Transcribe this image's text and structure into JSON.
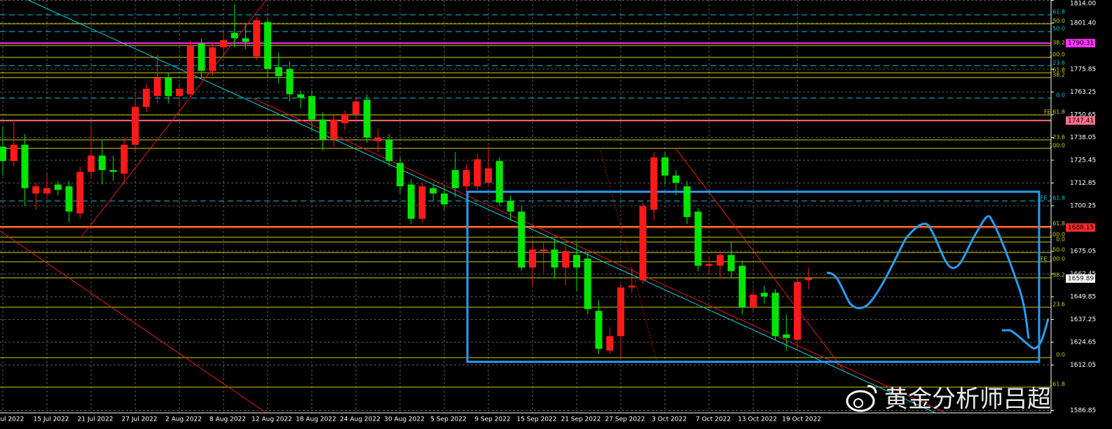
{
  "chart_data": {
    "type": "candlestick",
    "categories": [
      "Jul 2022",
      null,
      null,
      null,
      "15 Jul 2022",
      null,
      null,
      null,
      "21 Jul 2022",
      null,
      null,
      null,
      "27 Jul 2022",
      null,
      null,
      null,
      "2 Aug 2022",
      null,
      null,
      null,
      "8 Aug 2022",
      null,
      null,
      null,
      "12 Aug 2022",
      null,
      null,
      null,
      "18 Aug 2022",
      null,
      null,
      null,
      "24 Aug 2022",
      null,
      null,
      null,
      "30 Aug 2022",
      null,
      null,
      null,
      "5 Sep 2022",
      null,
      null,
      null,
      "9 Sep 2022",
      null,
      null,
      null,
      "15 Sep 2022",
      null,
      null,
      null,
      "21 Sep 2022",
      null,
      null,
      null,
      "27 Sep 2022",
      null,
      null,
      null,
      "3 Oct 2022",
      null,
      null,
      null,
      "7 Oct 2022",
      null,
      null,
      null,
      "13 Oct 2022",
      null,
      null,
      null,
      "19 Oct 2022",
      null
    ],
    "open": [
      1733,
      1725,
      1734,
      1707,
      1707,
      1712,
      1711,
      1696,
      1719,
      1728,
      1720,
      1718,
      1734,
      1755,
      1761,
      1771,
      1761,
      1762,
      1790,
      1775,
      1788,
      1796,
      1793,
      1783,
      1802,
      1777,
      1776,
      1762,
      1761,
      1748,
      1737,
      1746,
      1751,
      1759,
      1736,
      1737,
      1724,
      1712,
      1693,
      1710,
      1707,
      1720,
      1711,
      1711,
      1713,
      1725,
      1703,
      1697,
      1666,
      1675,
      1676,
      1666,
      1673,
      1671,
      1642,
      1620,
      1628,
      1655,
      1659,
      1698,
      1727,
      1717,
      1711,
      1697,
      1667,
      1667,
      1673,
      1667,
      1644,
      1652,
      1652,
      1629,
      1626,
      1659
    ],
    "close": [
      1725,
      1734,
      1710,
      1711,
      1710,
      1709,
      1697,
      1719,
      1728,
      1720,
      1719,
      1734,
      1755,
      1765,
      1771,
      1761,
      1765,
      1789,
      1775,
      1788,
      1792,
      1793,
      1791,
      1803,
      1776,
      1772,
      1762,
      1760,
      1748,
      1737,
      1748,
      1751,
      1758,
      1738,
      1738,
      1725,
      1711,
      1693,
      1711,
      1707,
      1701,
      1710,
      1720,
      1726,
      1721,
      1702,
      1697,
      1666,
      1676,
      1676,
      1666,
      1675,
      1666,
      1643,
      1621,
      1628,
      1655,
      1656,
      1700,
      1727,
      1717,
      1713,
      1694,
      1667,
      1668,
      1673,
      1664,
      1644,
      1651,
      1650,
      1628,
      1627,
      1658,
      1660
    ],
    "high": [
      1744,
      1748,
      1740,
      1713,
      1718,
      1714,
      1714,
      1722,
      1745,
      1737,
      1728,
      1738,
      1762,
      1768,
      1784,
      1774,
      1768,
      1792,
      1793,
      1791,
      1797,
      1812,
      1801,
      1805,
      1804,
      1785,
      1780,
      1764,
      1764,
      1752,
      1751,
      1753,
      1760,
      1762,
      1743,
      1740,
      1727,
      1715,
      1713,
      1712,
      1711,
      1730,
      1723,
      1729,
      1733,
      1727,
      1706,
      1700,
      1680,
      1680,
      1682,
      1678,
      1680,
      1674,
      1648,
      1633,
      1657,
      1666,
      1702,
      1730,
      1730,
      1720,
      1714,
      1699,
      1672,
      1675,
      1680,
      1670,
      1654,
      1656,
      1654,
      1640,
      1660,
      1666
    ],
    "low": [
      1717,
      1722,
      1700,
      1698,
      1705,
      1706,
      1691,
      1693,
      1715,
      1712,
      1714,
      1712,
      1730,
      1752,
      1757,
      1757,
      1755,
      1760,
      1771,
      1772,
      1784,
      1788,
      1787,
      1781,
      1771,
      1768,
      1758,
      1754,
      1742,
      1731,
      1733,
      1742,
      1746,
      1735,
      1730,
      1722,
      1707,
      1690,
      1691,
      1703,
      1698,
      1705,
      1708,
      1709,
      1711,
      1700,
      1692,
      1664,
      1656,
      1663,
      1660,
      1656,
      1653,
      1640,
      1618,
      1618,
      1615,
      1652,
      1657,
      1692,
      1712,
      1706,
      1690,
      1664,
      1662,
      1660,
      1660,
      1640,
      1642,
      1646,
      1626,
      1620,
      1620,
      1654
    ],
    "up_color": "#ff1a1a",
    "down_color": "#00e600",
    "ylim": [
      1585.1,
      1814.2
    ],
    "yticks": [
      {
        "value": 1814,
        "label": "1814.00"
      },
      {
        "value": 1801.4,
        "label": "1801.40"
      },
      1775.85,
      1763.25,
      1750.65,
      1738.05,
      1725.45,
      1712.85,
      1700.25,
      1675.05,
      1662.45,
      1649.85,
      1637.25,
      1624.65,
      1612.05,
      1586.85
    ],
    "grid": true,
    "levels": [
      {
        "label": "61.8",
        "value": 1806.0,
        "color": "#00c8d8"
      },
      {
        "label": "50.0",
        "value": 1801.0,
        "color": "#d0d000"
      },
      {
        "label": "50.0",
        "value": 1796.7,
        "color": "#00c8d8"
      },
      {
        "label": "38.2",
        "value": 1789.0,
        "color": "#d0d000"
      },
      {
        "label": "100.0",
        "value": 1782.4,
        "color": "#d0d000"
      },
      {
        "label": "23.6",
        "value": 1777.8,
        "color": "#00c8d8"
      },
      {
        "label": "61.8",
        "value": 1773.9,
        "color": "#d0d000"
      },
      {
        "label": "38.2",
        "value": 1771.2,
        "color": "#d0d000"
      },
      {
        "label": "0.0",
        "value": 1759.9,
        "color": "#00c8d8"
      },
      {
        "label": "FE 61.8",
        "value": 1750.6,
        "color": "#d0d000"
      },
      {
        "label": "23.6",
        "value": 1736.7,
        "color": "#d0d000"
      },
      {
        "label": "100.0",
        "value": 1732.0,
        "color": "#d0d000"
      },
      {
        "label": "FE 161.8",
        "value": 1702.9,
        "color": "#00c8d8"
      },
      {
        "label": "61.8",
        "value": 1688.8,
        "color": "#d0d000"
      },
      {
        "label": "100.0",
        "value": 1682.8,
        "color": "#d0d000"
      },
      {
        "label": "0.0",
        "value": 1680.1,
        "color": "#d0d000"
      },
      {
        "label": "50.0",
        "value": 1674.3,
        "color": "#d0d000"
      },
      {
        "label": "FE 100.0",
        "value": 1669.2,
        "color": "#d0d000"
      },
      {
        "label": "38.2",
        "value": 1660.3,
        "color": "#d0d000"
      },
      {
        "label": "23.6",
        "value": 1644.0,
        "color": "#d0d000"
      },
      {
        "label": "0.0",
        "value": 1616.1,
        "color": "#d0d000"
      },
      {
        "label": "161.8",
        "value": 1599.8,
        "color": "#d0d000"
      }
    ],
    "price_labels": [
      {
        "value": 1790.31,
        "color": "#ff33ff"
      },
      {
        "value": 1747.41,
        "color": "#ff6f8f"
      },
      {
        "value": 1688.15,
        "color": "#ff2a2a"
      },
      {
        "value": 1659.89,
        "color": "#ffffff"
      }
    ],
    "watermark": "黄金分析师吕超"
  }
}
